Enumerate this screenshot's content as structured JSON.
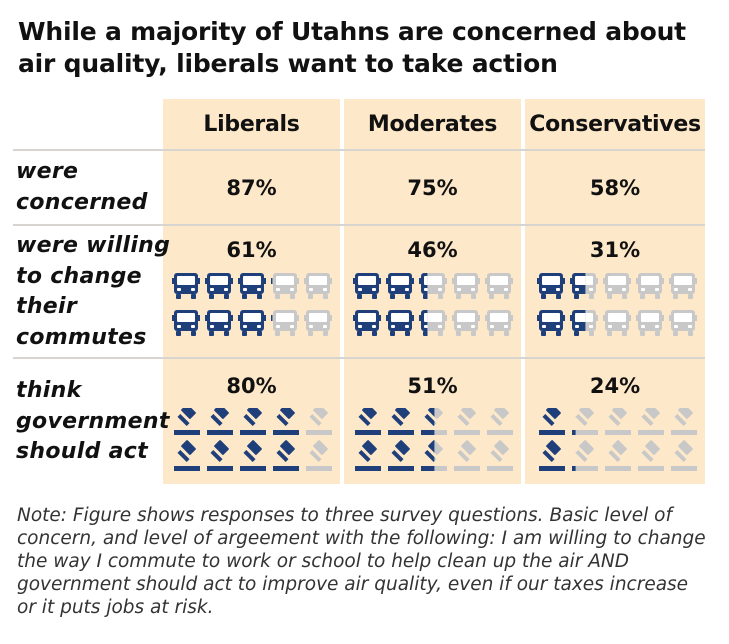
{
  "title": "While a majority of Utahns are concerned about air quality, liberals want to take action",
  "chart_data": {
    "type": "table",
    "columns": [
      "Liberals",
      "Moderates",
      "Conservatives"
    ],
    "rows": [
      {
        "label": "were concerned",
        "values": [
          87,
          75,
          58
        ],
        "display": [
          "87%",
          "75%",
          "58%"
        ],
        "icon": null
      },
      {
        "label": "were willing to change their commutes",
        "values": [
          61,
          46,
          31
        ],
        "display": [
          "61%",
          "46%",
          "31%"
        ],
        "icon": "bus-icon"
      },
      {
        "label": "think government should act",
        "values": [
          80,
          51,
          24
        ],
        "display": [
          "80%",
          "51%",
          "24%"
        ],
        "icon": "gavel-icon"
      }
    ],
    "icons_per_cell": 10,
    "unit": "%"
  },
  "row_labels": {
    "concerned": [
      "were",
      "concerned"
    ],
    "commute": [
      "were willing",
      "to change",
      "their",
      "commutes"
    ],
    "government": [
      "think",
      "government",
      "should act"
    ]
  },
  "note": "Note: Figure shows responses to three survey questions. Basic level of concern, and level of argeement with the following: I am willing to change the way I commute to work or school to help clean up the air AND government should act to improve air quality, even if our taxes increase or it puts jobs at risk.",
  "colors": {
    "column_background": "#fde8c9",
    "icon_filled": "#1f3f7a",
    "icon_empty": "#c8c8c8"
  }
}
